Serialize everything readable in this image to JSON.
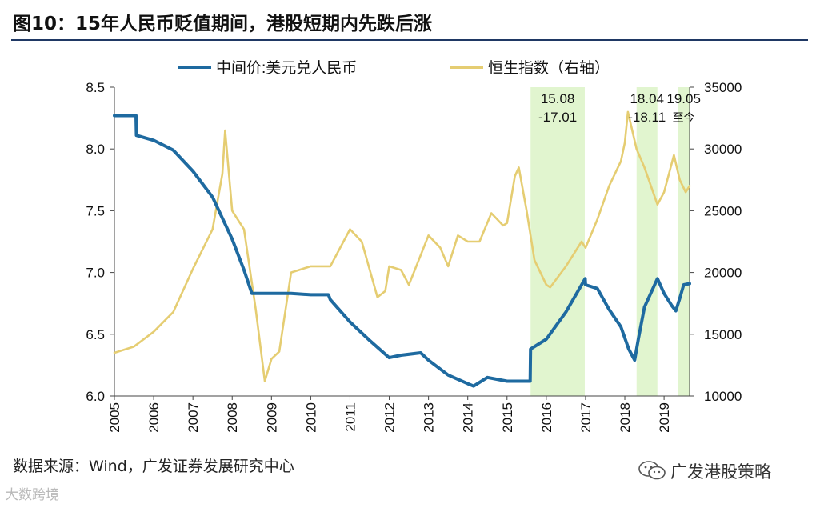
{
  "page": {
    "title": "图10：15年人民币贬值期间，港股短期内先跌后涨",
    "source": "数据来源：Wind，广发证券发展研究中心",
    "brand": "广发港股策略",
    "watermark": "大数跨境"
  },
  "chart_data": {
    "type": "line",
    "title": "图10：15年人民币贬值期间，港股短期内先跌后涨",
    "x_axis": {
      "labels": [
        "2005",
        "2006",
        "2007",
        "2008",
        "2009",
        "2010",
        "2011",
        "2012",
        "2013",
        "2014",
        "2015",
        "2016",
        "2017",
        "2018",
        "2019"
      ],
      "range": [
        2005.0,
        2019.65
      ]
    },
    "y_left": {
      "range": [
        6.0,
        8.5
      ],
      "ticks": [
        "6.0",
        "6.5",
        "7.0",
        "7.5",
        "8.0",
        "8.5"
      ]
    },
    "y_right": {
      "range": [
        10000,
        35000
      ],
      "ticks": [
        "10000",
        "15000",
        "20000",
        "25000",
        "30000",
        "35000"
      ]
    },
    "legend": [
      "中间价:美元兑人民币",
      "恒生指数（右轴）"
    ],
    "legend_position": "top-center",
    "colors": {
      "usdcny": "#1e6aa0",
      "hsi": "#e5cd72",
      "shade": "#e1f5cf"
    },
    "shaded_periods": [
      {
        "start": 2015.6,
        "end": 2016.98,
        "label_top": "15.08",
        "label_bottom": "-17.01"
      },
      {
        "start": 2018.3,
        "end": 2018.83,
        "label_top": "18.04",
        "label_bottom": "-18.11"
      },
      {
        "start": 2019.35,
        "end": 2019.65,
        "label_top": "19.05",
        "label_bottom": "至今"
      }
    ],
    "series": [
      {
        "name": "中间价:美元兑人民币",
        "axis": "left",
        "x": [
          2005.0,
          2005.55,
          2005.56,
          2006.0,
          2006.5,
          2007.0,
          2007.5,
          2008.0,
          2008.3,
          2008.5,
          2008.8,
          2009.0,
          2009.5,
          2010.0,
          2010.45,
          2010.5,
          2011.0,
          2011.5,
          2012.0,
          2012.3,
          2012.8,
          2013.0,
          2013.5,
          2014.0,
          2014.15,
          2014.5,
          2015.0,
          2015.3,
          2015.59,
          2015.6,
          2016.0,
          2016.5,
          2016.99,
          2017.0,
          2017.3,
          2017.6,
          2017.9,
          2018.1,
          2018.25,
          2018.35,
          2018.5,
          2018.83,
          2019.0,
          2019.2,
          2019.3,
          2019.4,
          2019.5,
          2019.65
        ],
        "y": [
          8.27,
          8.27,
          8.11,
          8.07,
          7.99,
          7.82,
          7.61,
          7.27,
          7.02,
          6.83,
          6.83,
          6.83,
          6.83,
          6.82,
          6.82,
          6.78,
          6.6,
          6.45,
          6.31,
          6.33,
          6.35,
          6.29,
          6.17,
          6.1,
          6.08,
          6.15,
          6.12,
          6.12,
          6.12,
          6.38,
          6.46,
          6.68,
          6.95,
          6.9,
          6.87,
          6.7,
          6.56,
          6.38,
          6.29,
          6.47,
          6.72,
          6.95,
          6.83,
          6.73,
          6.69,
          6.79,
          6.9,
          6.91
        ]
      },
      {
        "name": "恒生指数（右轴）",
        "axis": "right",
        "x": [
          2005.0,
          2005.5,
          2006.0,
          2006.5,
          2007.0,
          2007.5,
          2007.75,
          2007.82,
          2008.0,
          2008.3,
          2008.6,
          2008.83,
          2009.0,
          2009.2,
          2009.5,
          2010.0,
          2010.5,
          2011.0,
          2011.3,
          2011.7,
          2011.9,
          2012.0,
          2012.3,
          2012.5,
          2012.75,
          2013.0,
          2013.3,
          2013.5,
          2013.75,
          2014.0,
          2014.3,
          2014.6,
          2014.9,
          2015.0,
          2015.2,
          2015.3,
          2015.5,
          2015.7,
          2016.0,
          2016.1,
          2016.5,
          2016.9,
          2017.0,
          2017.3,
          2017.6,
          2017.9,
          2018.0,
          2018.08,
          2018.3,
          2018.5,
          2018.83,
          2019.0,
          2019.25,
          2019.4,
          2019.55,
          2019.65
        ],
        "y": [
          13500,
          14000,
          15200,
          16800,
          20300,
          23500,
          28000,
          31500,
          25000,
          23500,
          17000,
          11200,
          13000,
          13600,
          20000,
          20500,
          20500,
          23500,
          22500,
          18000,
          18500,
          20500,
          20200,
          19000,
          21000,
          23000,
          22000,
          20500,
          23000,
          22500,
          22500,
          24800,
          23800,
          24000,
          27800,
          28500,
          25000,
          21000,
          19000,
          18800,
          20500,
          22500,
          22000,
          24300,
          27000,
          29000,
          30500,
          33000,
          30000,
          28500,
          25500,
          26500,
          29500,
          27500,
          26500,
          27000
        ]
      }
    ]
  }
}
